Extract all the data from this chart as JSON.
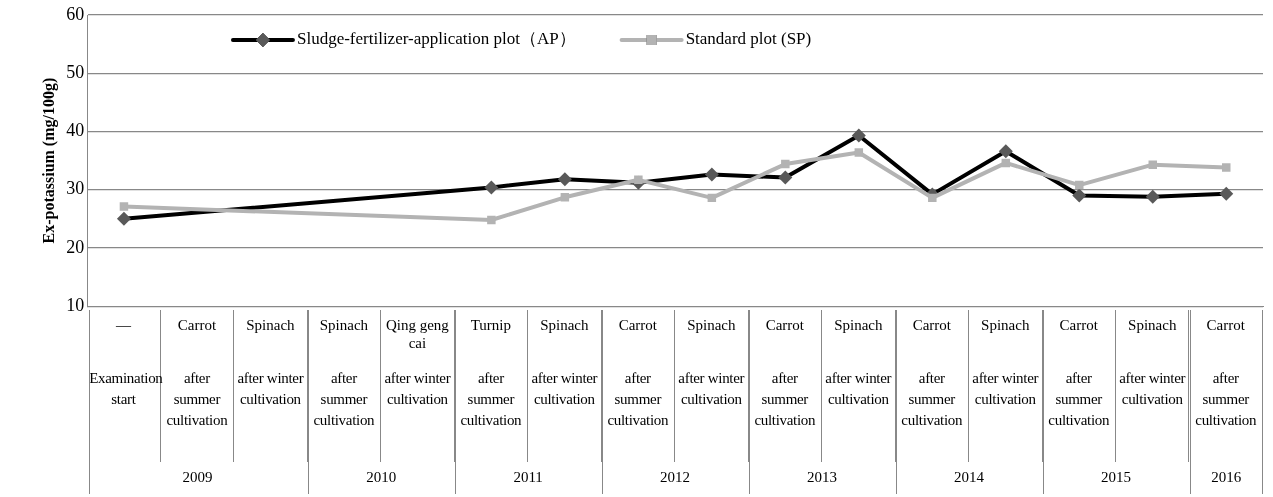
{
  "chart_data": {
    "type": "line",
    "ylabel": "Ex-potassium (mg/100g)",
    "categories": [
      "—\nExamination start",
      "Carrot\nafter summer cultivation",
      "Spinach\nafter winter cultivation",
      "Spinach\nafter summer cultivation",
      "Qing geng cai\nafter winter cultivation",
      "Turnip\nafter summer cultivation",
      "Spinach\nafter winter cultivation",
      "Carrot\nafter summer cultivation",
      "Spinach\nafter winter cultivation",
      "Carrot\nafter summer cultivation",
      "Spinach\nafter winter cultivation",
      "Carrot\nafter summer cultivation",
      "Spinach\nafter winter cultivation",
      "Carrot\nafter summer cultivation",
      "Spinach\nafter winter cultivation",
      "Carrot\nafter summer cultivation"
    ],
    "annotations": [
      "2009",
      "2010",
      "2011",
      "2012",
      "2013",
      "2014",
      "2015",
      "2016"
    ],
    "series": [
      {
        "name": "Sludge-fertilizer-application plot（AP）",
        "color": "#000000",
        "marker": "diamond",
        "values": [
          25.0,
          null,
          null,
          null,
          null,
          30.4,
          31.8,
          31.2,
          32.6,
          32.1,
          39.3,
          29.2,
          36.6,
          29.0,
          28.8,
          29.3
        ]
      },
      {
        "name": "Standard plot (SP)",
        "color": "#b3b3b3",
        "marker": "square",
        "values": [
          27.1,
          null,
          null,
          null,
          null,
          24.8,
          28.7,
          31.7,
          28.6,
          34.4,
          36.4,
          28.6,
          34.6,
          30.8,
          34.3,
          33.8
        ]
      }
    ],
    "ylim": [
      10,
      60
    ],
    "yticks": [
      10,
      20,
      30,
      40,
      50,
      60
    ],
    "grid": "y",
    "legend": "top"
  }
}
